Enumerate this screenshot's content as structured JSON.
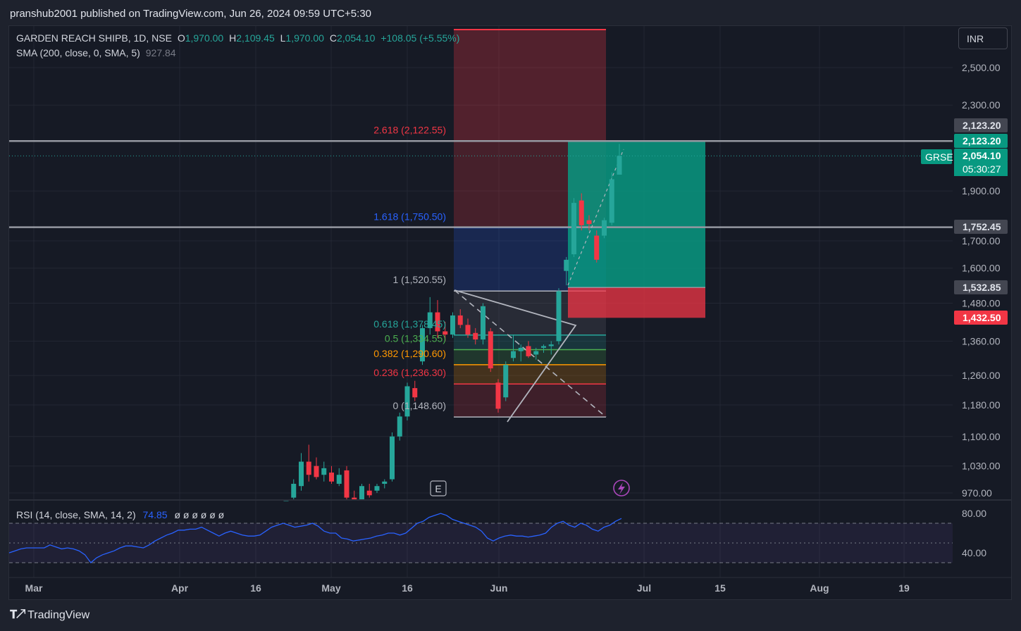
{
  "header": {
    "publisher": "pranshub2001 published on TradingView.com, Jun 26, 2024 09:59 UTC+5:30"
  },
  "legend": {
    "symbol": "GARDEN REACH SHIPB, 1D, NSE",
    "open_label": "O",
    "open": "1,970.00",
    "high_label": "H",
    "high": "2,109.45",
    "low_label": "L",
    "low": "1,970.00",
    "close_label": "C",
    "close": "2,054.10",
    "change": "+108.05 (+5.55%)",
    "sma_label": "SMA (200, close, 0, SMA, 5)",
    "sma_value": "927.84"
  },
  "rsi_legend": {
    "label": "RSI (14, close, SMA, 14, 2)",
    "value": "74.85",
    "extras": "ø ø ø ø ø ø"
  },
  "currency": "INR",
  "ticker_badge": "GRSE",
  "countdown": "05:30:27",
  "event_marker": "E",
  "footer": {
    "brand": "TradingView"
  },
  "colors": {
    "up": "#26a69a",
    "down": "#f23645",
    "rsi_line": "#2962ff",
    "fib_2618": "#f23645",
    "fib_1618": "#2962ff",
    "fib_1": "#b2b5be",
    "fib_0618": "#26a69a",
    "fib_05": "#4caf50",
    "fib_0382": "#ff9800",
    "fib_0236": "#f23645",
    "fib_0": "#b2b5be"
  },
  "chart_data": {
    "type": "candlestick",
    "price_axis": {
      "ticks": [
        2500,
        2300,
        1900,
        1700,
        1600,
        1480,
        1360,
        1260,
        1180,
        1100,
        1030,
        970
      ],
      "tick_labels": [
        "2,500.00",
        "2,300.00",
        "1,900.00",
        "1,700.00",
        "1,600.00",
        "1,480.00",
        "1,360.00",
        "1,260.00",
        "1,180.00",
        "1,100.00",
        "1,030.00",
        "970.00"
      ],
      "log": true
    },
    "time_axis": {
      "labels": [
        "Mar",
        "Apr",
        "16",
        "May",
        "16",
        "Jun",
        "Jul",
        "15",
        "Aug",
        "19"
      ]
    },
    "price_labels": [
      {
        "value": "2,123.20",
        "style": "grey"
      },
      {
        "value": "2,123.20",
        "style": "green"
      },
      {
        "value": "2,054.10",
        "style": "green"
      },
      {
        "value": "1,752.45",
        "style": "grey"
      },
      {
        "value": "1,532.85",
        "style": "grey"
      },
      {
        "value": "1,432.50",
        "style": "red"
      }
    ],
    "fib_levels": [
      {
        "ratio": "2.618",
        "price": 2122.55,
        "label": "2.618 (2,122.55)"
      },
      {
        "ratio": "1.618",
        "price": 1750.5,
        "label": "1.618 (1,750.50)"
      },
      {
        "ratio": "1",
        "price": 1520.55,
        "label": "1 (1,520.55)"
      },
      {
        "ratio": "0.618",
        "price": 1378.45,
        "label": "0.618 (1,378.45)"
      },
      {
        "ratio": "0.5",
        "price": 1334.55,
        "label": "0.5 (1,334.55)"
      },
      {
        "ratio": "0.382",
        "price": 1290.6,
        "label": "0.382 (1,290.60)"
      },
      {
        "ratio": "0.236",
        "price": 1236.3,
        "label": "0.236 (1,236.30)"
      },
      {
        "ratio": "0",
        "price": 1148.6,
        "label": "0 (1,148.60)"
      }
    ],
    "horizontal_lines": [
      2123.2,
      1752.45
    ],
    "position": {
      "entry": 1532.85,
      "target": 2123.2,
      "stop": 1432.5
    },
    "candles": [
      {
        "o": 930,
        "h": 955,
        "l": 920,
        "c": 945
      },
      {
        "o": 960,
        "h": 1000,
        "l": 950,
        "c": 990
      },
      {
        "o": 985,
        "h": 1060,
        "l": 975,
        "c": 1040
      },
      {
        "o": 1040,
        "h": 1080,
        "l": 995,
        "c": 1010
      },
      {
        "o": 1030,
        "h": 1050,
        "l": 1000,
        "c": 1005
      },
      {
        "o": 1010,
        "h": 1040,
        "l": 995,
        "c": 1025
      },
      {
        "o": 1015,
        "h": 1030,
        "l": 990,
        "c": 995
      },
      {
        "o": 990,
        "h": 1025,
        "l": 985,
        "c": 1010
      },
      {
        "o": 1020,
        "h": 1030,
        "l": 950,
        "c": 960
      },
      {
        "o": 960,
        "h": 975,
        "l": 930,
        "c": 940
      },
      {
        "o": 950,
        "h": 990,
        "l": 935,
        "c": 985
      },
      {
        "o": 975,
        "h": 990,
        "l": 960,
        "c": 965
      },
      {
        "o": 975,
        "h": 990,
        "l": 970,
        "c": 985
      },
      {
        "o": 990,
        "h": 1000,
        "l": 980,
        "c": 995
      },
      {
        "o": 1000,
        "h": 1110,
        "l": 995,
        "c": 1100
      },
      {
        "o": 1100,
        "h": 1160,
        "l": 1090,
        "c": 1150
      },
      {
        "o": 1150,
        "h": 1240,
        "l": 1140,
        "c": 1230
      },
      {
        "o": 1225,
        "h": 1245,
        "l": 1190,
        "c": 1200
      },
      {
        "o": 1300,
        "h": 1410,
        "l": 1290,
        "c": 1400
      },
      {
        "o": 1400,
        "h": 1500,
        "l": 1380,
        "c": 1450
      },
      {
        "o": 1450,
        "h": 1490,
        "l": 1370,
        "c": 1390
      },
      {
        "o": 1390,
        "h": 1420,
        "l": 1360,
        "c": 1380
      },
      {
        "o": 1380,
        "h": 1450,
        "l": 1370,
        "c": 1440
      },
      {
        "o": 1440,
        "h": 1460,
        "l": 1400,
        "c": 1410
      },
      {
        "o": 1410,
        "h": 1430,
        "l": 1370,
        "c": 1380
      },
      {
        "o": 1385,
        "h": 1400,
        "l": 1350,
        "c": 1365
      },
      {
        "o": 1365,
        "h": 1480,
        "l": 1350,
        "c": 1470
      },
      {
        "o": 1390,
        "h": 1400,
        "l": 1270,
        "c": 1280
      },
      {
        "o": 1240,
        "h": 1250,
        "l": 1160,
        "c": 1170
      },
      {
        "o": 1200,
        "h": 1300,
        "l": 1190,
        "c": 1290
      },
      {
        "o": 1310,
        "h": 1380,
        "l": 1300,
        "c": 1330
      },
      {
        "o": 1330,
        "h": 1350,
        "l": 1300,
        "c": 1340
      },
      {
        "o": 1345,
        "h": 1360,
        "l": 1310,
        "c": 1315
      },
      {
        "o": 1320,
        "h": 1340,
        "l": 1305,
        "c": 1330
      },
      {
        "o": 1340,
        "h": 1350,
        "l": 1325,
        "c": 1345
      },
      {
        "o": 1345,
        "h": 1360,
        "l": 1320,
        "c": 1350
      },
      {
        "o": 1360,
        "h": 1530,
        "l": 1350,
        "c": 1520
      },
      {
        "o": 1590,
        "h": 1640,
        "l": 1540,
        "c": 1630
      },
      {
        "o": 1650,
        "h": 1870,
        "l": 1640,
        "c": 1850
      },
      {
        "o": 1860,
        "h": 1890,
        "l": 1740,
        "c": 1760
      },
      {
        "o": 1780,
        "h": 1800,
        "l": 1740,
        "c": 1765
      },
      {
        "o": 1720,
        "h": 1740,
        "l": 1620,
        "c": 1630
      },
      {
        "o": 1720,
        "h": 1790,
        "l": 1710,
        "c": 1780
      },
      {
        "o": 1770,
        "h": 1980,
        "l": 1760,
        "c": 1950
      },
      {
        "o": 1970,
        "h": 2109.45,
        "l": 1970,
        "c": 2054.1
      }
    ],
    "rsi": {
      "ticks": [
        80,
        40
      ],
      "tick_labels": [
        "80.00",
        "40.00"
      ],
      "values": [
        40,
        42,
        44,
        45,
        45,
        45,
        45,
        48,
        46,
        44,
        45,
        44,
        42,
        38,
        30,
        35,
        38,
        40,
        42,
        45,
        47,
        47,
        46,
        45,
        48,
        52,
        55,
        58,
        60,
        63,
        63,
        64,
        64,
        66,
        63,
        60,
        57,
        60,
        62,
        60,
        58,
        57,
        57,
        58,
        62,
        66,
        68,
        70,
        68,
        66,
        67,
        68,
        70,
        67,
        62,
        60,
        60,
        55,
        54,
        52,
        53,
        54,
        55,
        57,
        58,
        60,
        60,
        58,
        60,
        65,
        70,
        72,
        76,
        78,
        80,
        78,
        74,
        72,
        70,
        68,
        66,
        62,
        55,
        52,
        55,
        57,
        58,
        57,
        57,
        56,
        57,
        58,
        60,
        66,
        70,
        72,
        68,
        66,
        70,
        68,
        64,
        62,
        66,
        68,
        72,
        74.85
      ]
    }
  }
}
